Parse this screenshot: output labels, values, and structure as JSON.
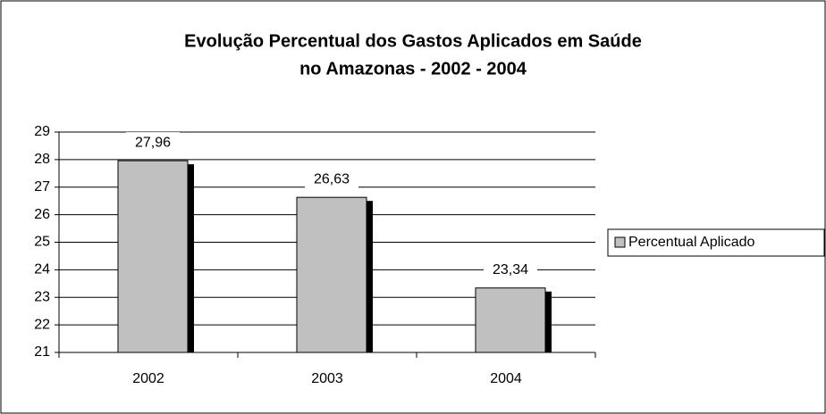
{
  "chart_data": {
    "type": "bar",
    "title": [
      "Evolução Percentual dos Gastos Aplicados em Saúde",
      "no Amazonas - 2002 - 2004"
    ],
    "categories": [
      "2002",
      "2003",
      "2004"
    ],
    "series": [
      {
        "name": "Percentual Aplicado",
        "color": "#c0c0c0",
        "values": [
          27.96,
          26.63,
          23.34
        ],
        "value_labels": [
          "27,96",
          "26,63",
          "23,34"
        ]
      }
    ],
    "ylim": [
      21,
      29
    ],
    "yticks": [
      21,
      22,
      23,
      24,
      25,
      26,
      27,
      28,
      29
    ],
    "grid": true,
    "legend": "right"
  }
}
